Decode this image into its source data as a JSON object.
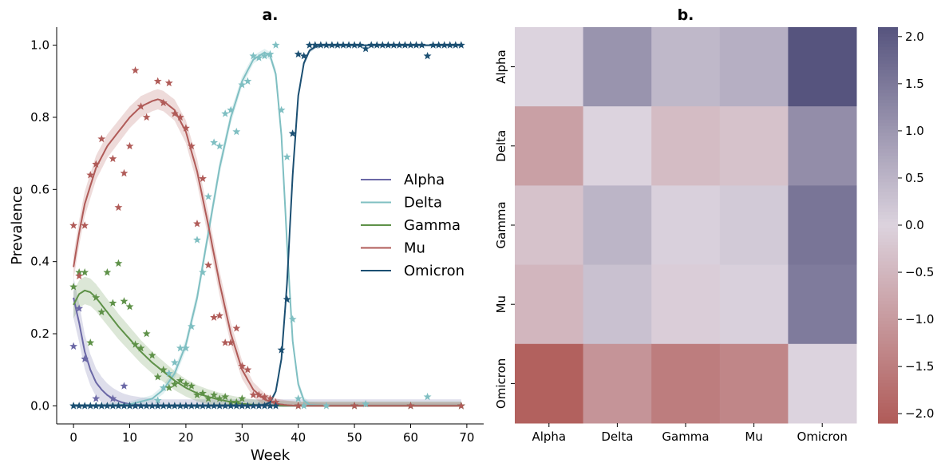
{
  "chart_data": [
    {
      "type": "scatter",
      "panel_title": "a.",
      "xlabel": "Week",
      "ylabel": "Prevalence",
      "xlim": [
        -3,
        73
      ],
      "ylim": [
        -0.05,
        1.05
      ],
      "xticks": [
        0,
        10,
        20,
        30,
        40,
        50,
        60,
        70
      ],
      "yticks": [
        0.0,
        0.2,
        0.4,
        0.6,
        0.8,
        1.0
      ],
      "legend_position": "center-right",
      "grid": false,
      "series": [
        {
          "name": "Alpha",
          "color": "#6b68a6",
          "observed": {
            "x": [
              0,
              1,
              2,
              4,
              7,
              9,
              11,
              15,
              20,
              30,
              40,
              50,
              60,
              69
            ],
            "y": [
              0.165,
              0.27,
              0.13,
              0.02,
              0.02,
              0.055,
              0.0,
              0.0,
              0.0,
              0.0,
              0.0,
              0.0,
              0.0,
              0.0
            ]
          },
          "fit": {
            "x": [
              0,
              1,
              2,
              3,
              4,
              5,
              6,
              7,
              8,
              9,
              10,
              12,
              15,
              20,
              30,
              40,
              69
            ],
            "y": [
              0.3,
              0.23,
              0.15,
              0.1,
              0.065,
              0.045,
              0.03,
              0.02,
              0.013,
              0.008,
              0.005,
              0.002,
              0.0,
              0.0,
              0.0,
              0.0,
              0.0
            ],
            "band": 0.06
          }
        },
        {
          "name": "Delta",
          "color": "#7fbfc2",
          "observed": {
            "x": [
              0,
              5,
              10,
              15,
              16,
              17,
              18,
              19,
              20,
              21,
              22,
              23,
              24,
              25,
              26,
              27,
              28,
              29,
              30,
              31,
              32,
              33,
              34,
              35,
              36,
              37,
              38,
              39,
              40,
              41,
              45,
              52,
              60,
              63,
              69
            ],
            "y": [
              0.0,
              0.0,
              0.0,
              0.015,
              0.05,
              0.09,
              0.12,
              0.16,
              0.16,
              0.22,
              0.46,
              0.37,
              0.58,
              0.73,
              0.72,
              0.81,
              0.82,
              0.76,
              0.89,
              0.9,
              0.97,
              0.965,
              0.97,
              0.975,
              1.0,
              0.82,
              0.69,
              0.24,
              0.02,
              0.0,
              0.0,
              0.005,
              0.0,
              0.025,
              0.0
            ]
          },
          "fit": {
            "x": [
              0,
              5,
              10,
              14,
              16,
              18,
              20,
              22,
              24,
              26,
              28,
              30,
              32,
              34,
              35,
              36,
              37,
              38,
              39,
              40,
              41,
              42,
              45,
              69
            ],
            "y": [
              0.0,
              0.0,
              0.004,
              0.02,
              0.045,
              0.09,
              0.17,
              0.3,
              0.48,
              0.66,
              0.8,
              0.9,
              0.96,
              0.98,
              0.97,
              0.92,
              0.75,
              0.45,
              0.18,
              0.06,
              0.015,
              0.003,
              0.0,
              0.0
            ],
            "band": 0.02
          }
        },
        {
          "name": "Gamma",
          "color": "#5e9148",
          "observed": {
            "x": [
              0,
              1,
              2,
              3,
              4,
              5,
              6,
              7,
              8,
              9,
              10,
              11,
              12,
              13,
              14,
              15,
              16,
              17,
              18,
              19,
              20,
              21,
              22,
              23,
              24,
              25,
              26,
              27,
              28,
              29,
              30,
              40,
              50,
              60,
              69
            ],
            "y": [
              0.33,
              0.37,
              0.37,
              0.175,
              0.3,
              0.26,
              0.37,
              0.285,
              0.395,
              0.29,
              0.275,
              0.17,
              0.16,
              0.2,
              0.14,
              0.08,
              0.1,
              0.05,
              0.06,
              0.07,
              0.06,
              0.055,
              0.03,
              0.035,
              0.02,
              0.03,
              0.02,
              0.025,
              0.01,
              0.01,
              0.02,
              0.0,
              0.0,
              0.0,
              0.0
            ]
          },
          "fit": {
            "x": [
              0,
              1,
              2,
              3,
              4,
              5,
              6,
              8,
              10,
              12,
              14,
              16,
              18,
              20,
              22,
              24,
              26,
              28,
              30,
              32,
              35,
              40,
              69
            ],
            "y": [
              0.28,
              0.31,
              0.32,
              0.315,
              0.3,
              0.28,
              0.26,
              0.22,
              0.185,
              0.15,
              0.12,
              0.095,
              0.07,
              0.05,
              0.035,
              0.025,
              0.017,
              0.011,
              0.006,
              0.003,
              0.001,
              0.0,
              0.0
            ],
            "band": 0.04
          }
        },
        {
          "name": "Mu",
          "color": "#b05b58",
          "observed": {
            "x": [
              0,
              1,
              2,
              3,
              4,
              5,
              7,
              8,
              9,
              10,
              11,
              12,
              13,
              15,
              16,
              17,
              18,
              19,
              20,
              21,
              22,
              23,
              24,
              25,
              26,
              27,
              28,
              29,
              30,
              31,
              32,
              33,
              34,
              35,
              36,
              40,
              50,
              60,
              69
            ],
            "y": [
              0.5,
              0.36,
              0.5,
              0.64,
              0.67,
              0.74,
              0.685,
              0.55,
              0.645,
              0.72,
              0.93,
              0.83,
              0.8,
              0.9,
              0.84,
              0.895,
              0.81,
              0.8,
              0.77,
              0.72,
              0.505,
              0.63,
              0.39,
              0.245,
              0.25,
              0.175,
              0.175,
              0.215,
              0.11,
              0.1,
              0.03,
              0.03,
              0.025,
              0.02,
              0.01,
              0.0,
              0.0,
              0.0,
              0.0
            ]
          },
          "fit": {
            "x": [
              0,
              1,
              2,
              4,
              6,
              8,
              10,
              12,
              14,
              15,
              16,
              18,
              20,
              22,
              24,
              26,
              28,
              30,
              32,
              34,
              36,
              38,
              40,
              69
            ],
            "y": [
              0.385,
              0.48,
              0.56,
              0.66,
              0.72,
              0.76,
              0.8,
              0.83,
              0.845,
              0.85,
              0.845,
              0.82,
              0.76,
              0.65,
              0.5,
              0.34,
              0.2,
              0.1,
              0.045,
              0.018,
              0.006,
              0.002,
              0.0,
              0.0
            ],
            "band": 0.035
          }
        },
        {
          "name": "Omicron",
          "color": "#1b4f72",
          "observed": {
            "x": [
              0,
              1,
              2,
              3,
              4,
              5,
              6,
              7,
              8,
              9,
              10,
              11,
              12,
              13,
              14,
              15,
              16,
              17,
              18,
              19,
              20,
              21,
              22,
              23,
              24,
              25,
              26,
              27,
              28,
              29,
              30,
              31,
              32,
              33,
              34,
              35,
              36,
              37,
              38,
              39,
              40,
              41,
              42,
              43,
              44,
              45,
              46,
              47,
              48,
              49,
              50,
              51,
              52,
              53,
              54,
              55,
              56,
              57,
              58,
              59,
              60,
              61,
              62,
              63,
              64,
              65,
              66,
              67,
              68,
              69
            ],
            "y": [
              0.0,
              0.0,
              0.0,
              0.0,
              0.0,
              0.0,
              0.0,
              0.0,
              0.0,
              0.0,
              0.0,
              0.0,
              0.0,
              0.0,
              0.0,
              0.0,
              0.0,
              0.0,
              0.0,
              0.0,
              0.0,
              0.0,
              0.0,
              0.0,
              0.0,
              0.0,
              0.0,
              0.0,
              0.0,
              0.0,
              0.0,
              0.0,
              0.0,
              0.0,
              0.0,
              0.0,
              0.0,
              0.155,
              0.295,
              0.755,
              0.975,
              0.97,
              1.0,
              1.0,
              1.0,
              1.0,
              1.0,
              1.0,
              1.0,
              1.0,
              1.0,
              1.0,
              0.99,
              1.0,
              1.0,
              1.0,
              1.0,
              1.0,
              1.0,
              1.0,
              1.0,
              1.0,
              1.0,
              0.97,
              1.0,
              1.0,
              1.0,
              1.0,
              1.0,
              1.0
            ]
          },
          "fit": {
            "x": [
              0,
              30,
              34,
              35,
              36,
              37,
              38,
              39,
              40,
              41,
              42,
              43,
              44,
              46,
              50,
              69
            ],
            "y": [
              0.0,
              0.0,
              0.003,
              0.01,
              0.04,
              0.13,
              0.34,
              0.64,
              0.86,
              0.95,
              0.985,
              0.995,
              1.0,
              1.0,
              1.0,
              1.0
            ],
            "band": 0.012
          }
        }
      ]
    },
    {
      "type": "heatmap",
      "panel_title": "b.",
      "rows": [
        "Alpha",
        "Delta",
        "Gamma",
        "Mu",
        "Omicron"
      ],
      "columns": [
        "Alpha",
        "Delta",
        "Gamma",
        "Mu",
        "Omicron"
      ],
      "values": [
        [
          0.0,
          1.05,
          0.45,
          0.6,
          2.1
        ],
        [
          -0.9,
          0.0,
          -0.4,
          -0.3,
          1.15
        ],
        [
          -0.3,
          0.5,
          0.05,
          0.15,
          1.55
        ],
        [
          -0.5,
          0.3,
          -0.1,
          0.05,
          1.45
        ],
        [
          -2.0,
          -1.1,
          -1.5,
          -1.35,
          0.0
        ]
      ],
      "vmin": -2.1,
      "vmax": 2.1,
      "colorbar_ticks": [
        -2.0,
        -1.5,
        -1.0,
        -0.5,
        0.0,
        0.5,
        1.0,
        1.5,
        2.0
      ],
      "colorbar_tick_labels": [
        "−2.0",
        "−1.5",
        "−1.0",
        "−0.5",
        "0.0",
        "0.5",
        "1.0",
        "1.5",
        "2.0"
      ],
      "colormap": {
        "negative": "#b05b58",
        "center": "#dcd3de",
        "positive": "#56547e"
      }
    }
  ]
}
